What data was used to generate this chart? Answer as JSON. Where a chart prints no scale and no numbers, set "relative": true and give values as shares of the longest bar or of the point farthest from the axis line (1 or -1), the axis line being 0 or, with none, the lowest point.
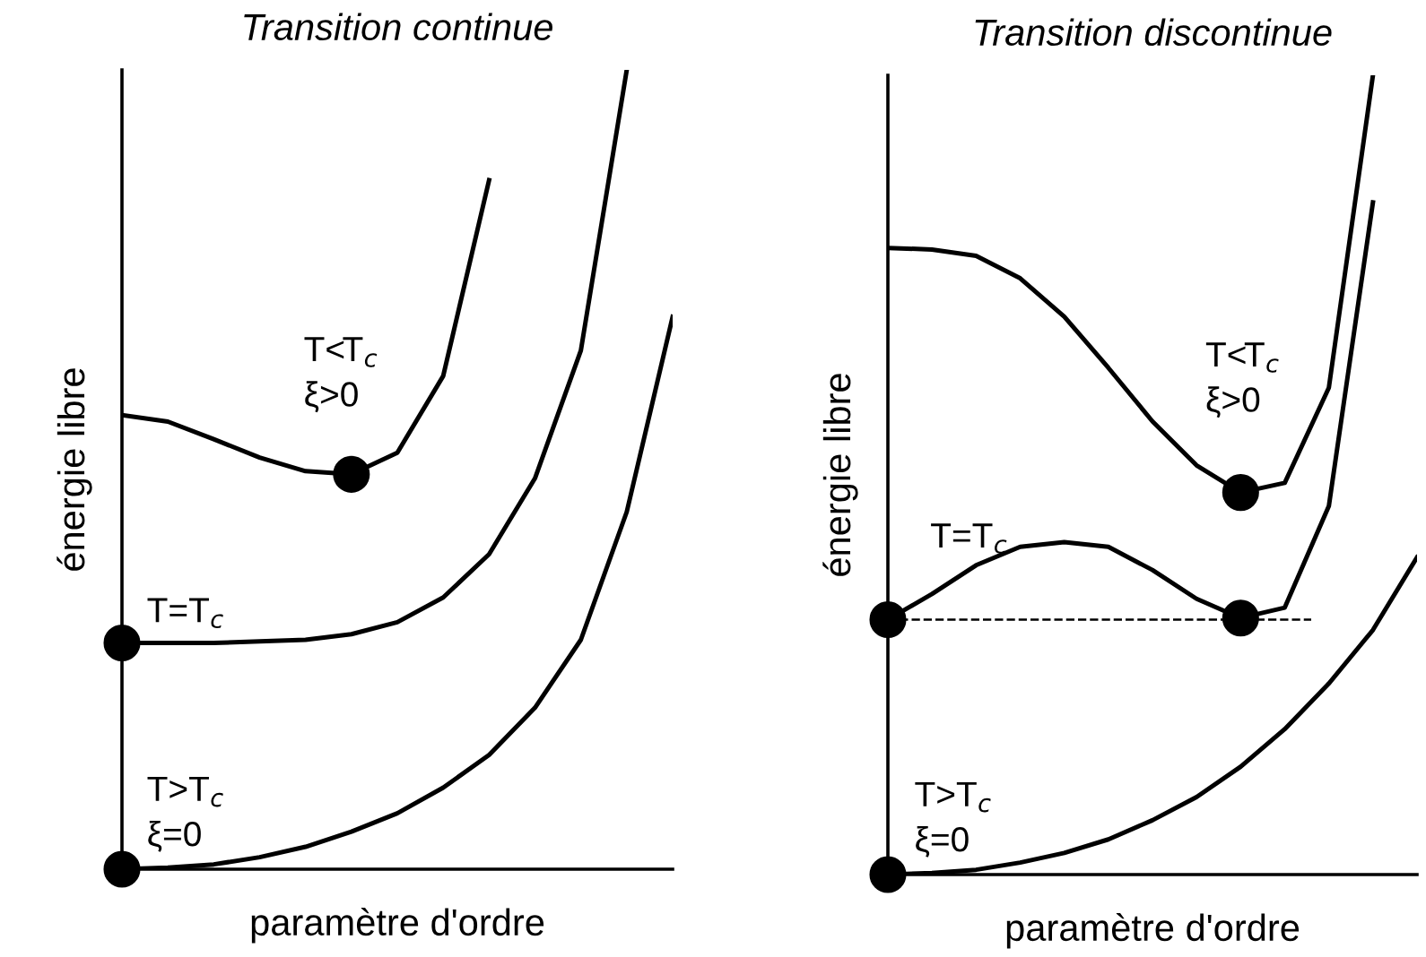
{
  "chart_data": [
    {
      "type": "line",
      "title": "Transition continue",
      "xlabel": "paramètre d'ordre",
      "ylabel": "énergie libre",
      "relative": true,
      "grid": false,
      "legend": false,
      "categories": [
        null,
        null,
        null,
        null,
        null,
        null,
        null,
        null,
        null,
        null,
        null,
        null,
        null
      ],
      "series": [
        {
          "name": "T>T$_{c}$\nξ=0",
          "color": "#000000",
          "values": [
            0,
            0.002,
            0.006,
            0.015,
            0.028,
            0.047,
            0.07,
            0.102,
            0.143,
            0.202,
            0.287,
            0.447,
            0.691
          ]
        },
        {
          "name": "T=T$_{c}$",
          "color": "#000000",
          "values": [
            0.283,
            0.283,
            0.283,
            0.285,
            0.287,
            0.294,
            0.309,
            0.34,
            0.394,
            0.489,
            0.649,
            1.0,
            null
          ]
        },
        {
          "name": "T<T$_{c}$\nξ>0",
          "color": "#000000",
          "values": [
            0.568,
            0.56,
            0.538,
            0.515,
            0.498,
            0.494,
            0.521,
            0.617,
            0.862,
            null,
            null,
            null,
            null
          ]
        }
      ]
    },
    {
      "type": "line",
      "title": "Transition discontinue",
      "xlabel": "paramètre d'ordre",
      "ylabel": "énergie libre",
      "relative": true,
      "grid": false,
      "legend": false,
      "categories": [
        null,
        null,
        null,
        null,
        null,
        null,
        null,
        null,
        null,
        null,
        null,
        null,
        null
      ],
      "ref_lines": [
        {
          "axis": "y",
          "value": 0.319,
          "color": "#000000",
          "line_style": "dashed"
        }
      ],
      "series": [
        {
          "name": "T>T$_{c}$\nξ=0",
          "color": "#000000",
          "values": [
            0,
            0.002,
            0.006,
            0.015,
            0.027,
            0.044,
            0.068,
            0.097,
            0.135,
            0.182,
            0.239,
            0.306,
            0.397
          ]
        },
        {
          "name": "T=T$_{c}$",
          "color": "#000000",
          "values": [
            0.319,
            0.351,
            0.387,
            0.41,
            0.416,
            0.41,
            0.381,
            0.345,
            0.321,
            0.334,
            0.461,
            0.841,
            null
          ]
        },
        {
          "name": "T<T$_{c}$\nξ>0",
          "color": "#000000",
          "values": [
            0.784,
            0.782,
            0.774,
            0.746,
            0.698,
            0.634,
            0.567,
            0.512,
            0.478,
            0.49,
            0.609,
            1.0,
            null
          ]
        }
      ]
    }
  ]
}
